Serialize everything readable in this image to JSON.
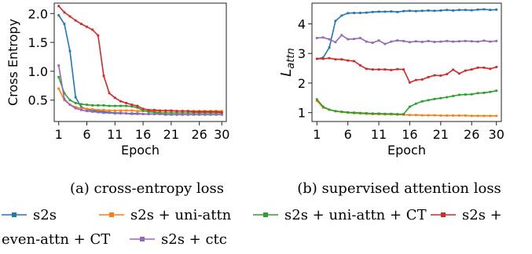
{
  "chart_data": [
    {
      "type": "line",
      "xlabel": "Epoch",
      "ylabel": "Cross Entropy",
      "xlim": [
        0.2,
        30.8
      ],
      "ylim": [
        0.13,
        2.18
      ],
      "xticks": [
        1,
        6,
        11,
        16,
        21,
        26,
        30
      ],
      "yticks": [
        0.5,
        1.0,
        1.5,
        2.0
      ],
      "ytick_labels": [
        "0.5",
        "1.0",
        "1.5",
        "2.0"
      ],
      "grid": false,
      "caption": "(a) cross-entropy loss",
      "series": [
        {
          "name": "s2s",
          "color": "#1f77b4",
          "x": [
            1,
            2,
            3,
            4,
            5,
            6,
            7,
            8,
            9,
            10,
            11,
            12,
            13,
            14,
            15,
            16,
            17,
            18,
            19,
            20,
            21,
            22,
            23,
            24,
            25,
            26,
            27,
            28,
            29,
            30
          ],
          "y": [
            1.97,
            1.82,
            1.35,
            0.55,
            0.38,
            0.34,
            0.32,
            0.31,
            0.3,
            0.29,
            0.28,
            0.28,
            0.27,
            0.27,
            0.27,
            0.26,
            0.26,
            0.26,
            0.26,
            0.25,
            0.25,
            0.25,
            0.25,
            0.25,
            0.25,
            0.25,
            0.25,
            0.25,
            0.25,
            0.25
          ]
        },
        {
          "name": "s2s + uni-attn",
          "color": "#ff7f0e",
          "x": [
            1,
            2,
            3,
            4,
            5,
            6,
            7,
            8,
            9,
            10,
            11,
            12,
            13,
            14,
            15,
            16,
            17,
            18,
            19,
            20,
            21,
            22,
            23,
            24,
            25,
            26,
            27,
            28,
            29,
            30
          ],
          "y": [
            0.7,
            0.5,
            0.42,
            0.38,
            0.36,
            0.35,
            0.34,
            0.33,
            0.33,
            0.32,
            0.32,
            0.32,
            0.32,
            0.32,
            0.31,
            0.31,
            0.31,
            0.31,
            0.31,
            0.31,
            0.31,
            0.31,
            0.31,
            0.31,
            0.31,
            0.31,
            0.31,
            0.31,
            0.31,
            0.31
          ]
        },
        {
          "name": "s2s + uni-attn + CT",
          "color": "#2ca02c",
          "x": [
            1,
            2,
            3,
            4,
            5,
            6,
            7,
            8,
            9,
            10,
            11,
            12,
            13,
            14,
            15,
            16,
            17,
            18,
            19,
            20,
            21,
            22,
            23,
            24,
            25,
            26,
            27,
            28,
            29,
            30
          ],
          "y": [
            0.9,
            0.62,
            0.5,
            0.45,
            0.43,
            0.42,
            0.41,
            0.41,
            0.41,
            0.4,
            0.4,
            0.4,
            0.4,
            0.39,
            0.37,
            0.32,
            0.3,
            0.29,
            0.28,
            0.28,
            0.28,
            0.28,
            0.28,
            0.28,
            0.28,
            0.28,
            0.28,
            0.28,
            0.28,
            0.28
          ]
        },
        {
          "name": "s2s + even-attn + CT",
          "color": "#d62728",
          "x": [
            1,
            2,
            3,
            4,
            5,
            6,
            7,
            8,
            9,
            10,
            11,
            12,
            13,
            14,
            15,
            16,
            17,
            18,
            19,
            20,
            21,
            22,
            23,
            24,
            25,
            26,
            27,
            28,
            29,
            30
          ],
          "y": [
            2.13,
            2.02,
            1.95,
            1.88,
            1.82,
            1.77,
            1.72,
            1.62,
            0.92,
            0.62,
            0.54,
            0.48,
            0.45,
            0.42,
            0.4,
            0.35,
            0.33,
            0.33,
            0.32,
            0.32,
            0.32,
            0.31,
            0.31,
            0.31,
            0.3,
            0.3,
            0.3,
            0.3,
            0.3,
            0.29
          ]
        },
        {
          "name": "s2s + ctc",
          "color": "#9467bd",
          "x": [
            1,
            2,
            3,
            4,
            5,
            6,
            7,
            8,
            9,
            10,
            11,
            12,
            13,
            14,
            15,
            16,
            17,
            18,
            19,
            20,
            21,
            22,
            23,
            24,
            25,
            26,
            27,
            28,
            29,
            30
          ],
          "y": [
            1.1,
            0.52,
            0.42,
            0.36,
            0.33,
            0.31,
            0.3,
            0.29,
            0.28,
            0.28,
            0.27,
            0.27,
            0.27,
            0.26,
            0.26,
            0.26,
            0.26,
            0.26,
            0.26,
            0.25,
            0.25,
            0.25,
            0.25,
            0.25,
            0.25,
            0.25,
            0.25,
            0.25,
            0.25,
            0.25
          ]
        }
      ]
    },
    {
      "type": "line",
      "xlabel": "Epoch",
      "ylabel_main": "L",
      "ylabel_sub": "attn",
      "xlim": [
        0.2,
        30.8
      ],
      "ylim": [
        0.7,
        4.7
      ],
      "xticks": [
        1,
        6,
        11,
        16,
        21,
        26,
        30
      ],
      "yticks": [
        1,
        2,
        3,
        4
      ],
      "ytick_labels": [
        "1",
        "2",
        "3",
        "4"
      ],
      "grid": false,
      "caption": "(b) supervised attention loss",
      "series": [
        {
          "name": "s2s",
          "color": "#1f77b4",
          "x": [
            1,
            2,
            3,
            4,
            5,
            6,
            7,
            8,
            9,
            10,
            11,
            12,
            13,
            14,
            15,
            16,
            17,
            18,
            19,
            20,
            21,
            22,
            23,
            24,
            25,
            26,
            27,
            28,
            29,
            30
          ],
          "y": [
            2.82,
            2.86,
            3.2,
            4.1,
            4.28,
            4.36,
            4.37,
            4.37,
            4.38,
            4.4,
            4.41,
            4.41,
            4.42,
            4.4,
            4.43,
            4.44,
            4.43,
            4.44,
            4.45,
            4.44,
            4.45,
            4.47,
            4.45,
            4.47,
            4.47,
            4.46,
            4.48,
            4.49,
            4.47,
            4.48
          ]
        },
        {
          "name": "s2s + uni-attn",
          "color": "#ff7f0e",
          "x": [
            1,
            2,
            3,
            4,
            5,
            6,
            7,
            8,
            9,
            10,
            11,
            12,
            13,
            14,
            15,
            16,
            17,
            18,
            19,
            20,
            21,
            22,
            23,
            24,
            25,
            26,
            27,
            28,
            29,
            30
          ],
          "y": [
            1.4,
            1.17,
            1.1,
            1.05,
            1.02,
            1.0,
            0.98,
            0.97,
            0.96,
            0.95,
            0.95,
            0.94,
            0.94,
            0.93,
            0.93,
            0.92,
            0.92,
            0.91,
            0.91,
            0.91,
            0.9,
            0.9,
            0.9,
            0.9,
            0.9,
            0.89,
            0.89,
            0.89,
            0.89,
            0.89
          ]
        },
        {
          "name": "s2s + uni-attn + CT",
          "color": "#2ca02c",
          "x": [
            1,
            2,
            3,
            4,
            5,
            6,
            7,
            8,
            9,
            10,
            11,
            12,
            13,
            14,
            15,
            16,
            17,
            18,
            19,
            20,
            21,
            22,
            23,
            24,
            25,
            26,
            27,
            28,
            29,
            30
          ],
          "y": [
            1.45,
            1.2,
            1.1,
            1.05,
            1.03,
            1.01,
            1.0,
            0.99,
            0.98,
            0.97,
            0.97,
            0.96,
            0.96,
            0.95,
            0.95,
            1.2,
            1.3,
            1.38,
            1.42,
            1.46,
            1.49,
            1.52,
            1.56,
            1.6,
            1.61,
            1.62,
            1.66,
            1.67,
            1.7,
            1.74
          ]
        },
        {
          "name": "s2s + even-attn + CT",
          "color": "#d62728",
          "x": [
            1,
            2,
            3,
            4,
            5,
            6,
            7,
            8,
            9,
            10,
            11,
            12,
            13,
            14,
            15,
            16,
            17,
            18,
            19,
            20,
            21,
            22,
            23,
            24,
            25,
            26,
            27,
            28,
            29,
            30
          ],
          "y": [
            2.82,
            2.82,
            2.84,
            2.8,
            2.8,
            2.76,
            2.74,
            2.6,
            2.48,
            2.46,
            2.46,
            2.46,
            2.44,
            2.47,
            2.46,
            2.02,
            2.1,
            2.12,
            2.2,
            2.26,
            2.25,
            2.3,
            2.45,
            2.32,
            2.42,
            2.46,
            2.52,
            2.52,
            2.48,
            2.54
          ]
        },
        {
          "name": "s2s + ctc",
          "color": "#9467bd",
          "x": [
            1,
            2,
            3,
            4,
            5,
            6,
            7,
            8,
            9,
            10,
            11,
            12,
            13,
            14,
            15,
            16,
            17,
            18,
            19,
            20,
            21,
            22,
            23,
            24,
            25,
            26,
            27,
            28,
            29,
            30
          ],
          "y": [
            3.52,
            3.54,
            3.48,
            3.38,
            3.62,
            3.48,
            3.49,
            3.52,
            3.4,
            3.36,
            3.44,
            3.32,
            3.4,
            3.44,
            3.42,
            3.38,
            3.41,
            3.39,
            3.42,
            3.39,
            3.4,
            3.42,
            3.4,
            3.41,
            3.42,
            3.41,
            3.4,
            3.43,
            3.4,
            3.42
          ]
        }
      ]
    }
  ],
  "legend": {
    "placement": "bottom",
    "items": [
      {
        "label": "s2s",
        "color": "#1f77b4"
      },
      {
        "label": "s2s + uni-attn",
        "color": "#ff7f0e"
      },
      {
        "label": "s2s + uni-attn + CT",
        "color": "#2ca02c"
      },
      {
        "label": "s2s +",
        "color": "#d62728"
      },
      {
        "label": "even-attn + CT",
        "color": null
      },
      {
        "label": "s2s + ctc",
        "color": "#9467bd"
      }
    ]
  }
}
